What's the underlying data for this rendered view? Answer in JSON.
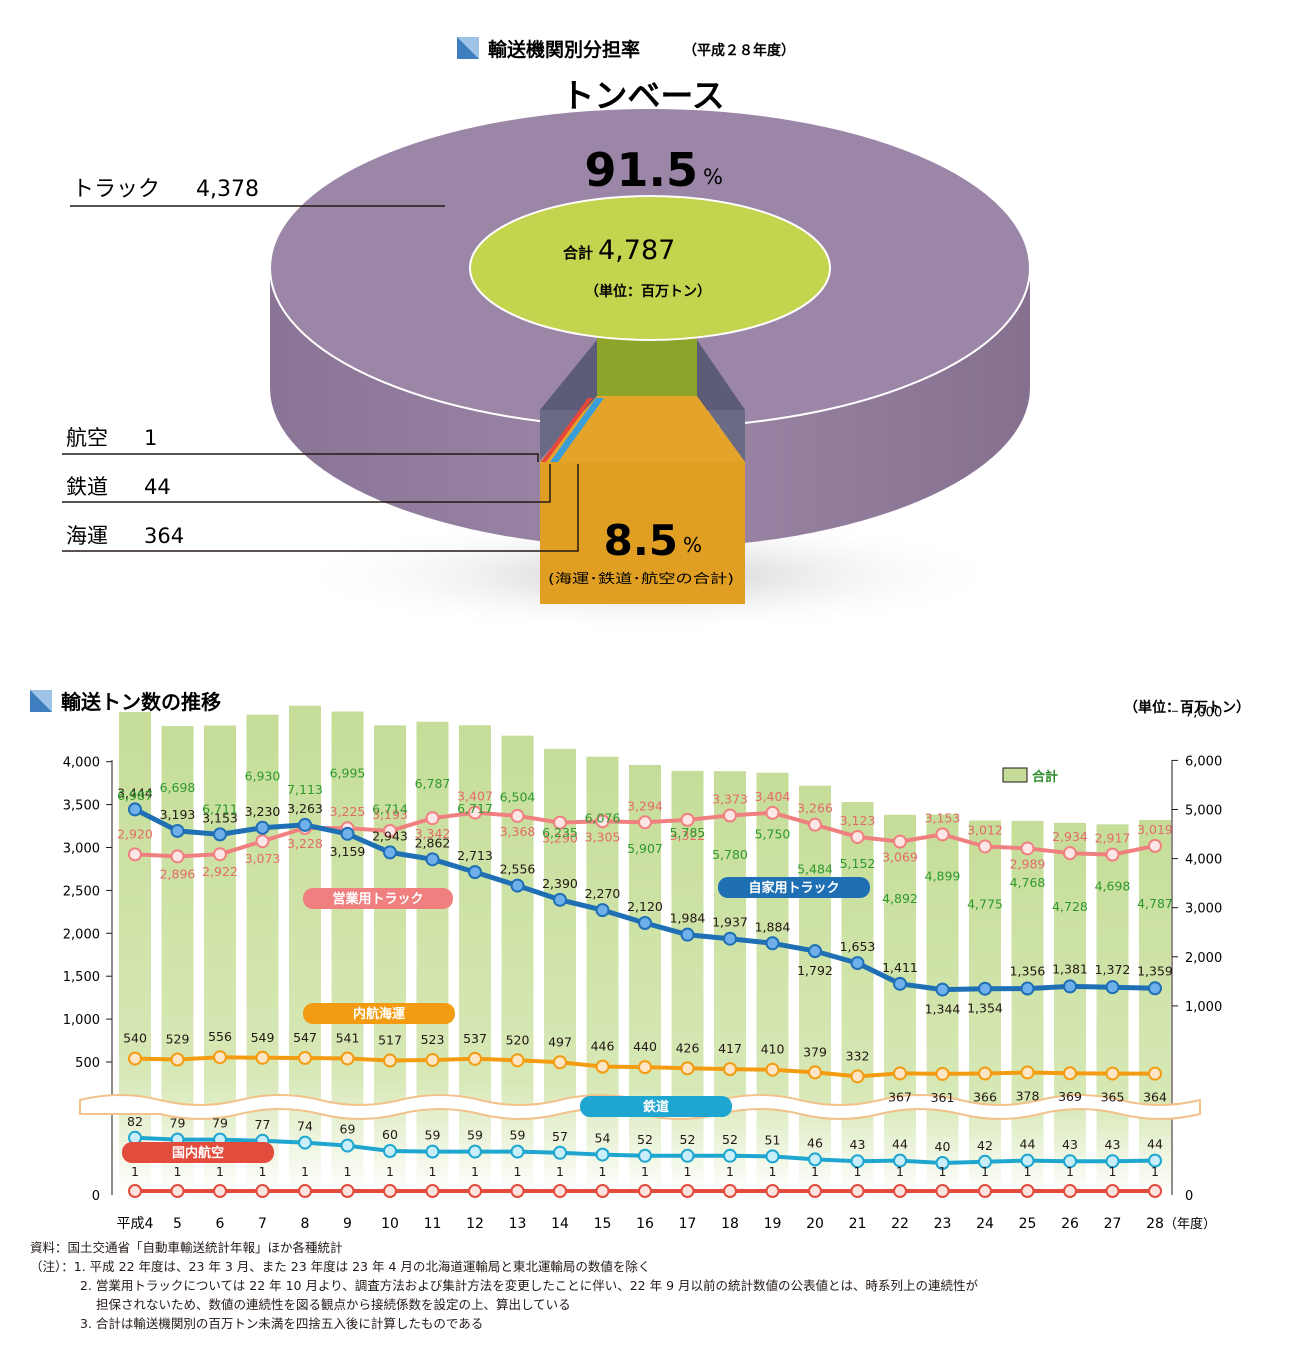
{
  "pie_section": {
    "title": "輸送機関別分担率",
    "title_sub": "（平成２８年度）",
    "subtitle": "トンベース",
    "truck_percent": "91.5",
    "percent_sign": "%",
    "center_total_label": "合計",
    "center_total_value": "4,787",
    "center_unit": "（単位：百万トン）",
    "other_percent": "8.5",
    "other_note": "(海運･鉄道･航空の合計)",
    "labels": [
      {
        "name": "トラック",
        "value": "4,378"
      },
      {
        "name": "航空",
        "value": "1"
      },
      {
        "name": "鉄道",
        "value": "44"
      },
      {
        "name": "海運",
        "value": "364"
      }
    ],
    "colors": {
      "truck": "#9b85a6",
      "center": "#c4d44e",
      "other": "#e0a022",
      "air": "#e8463a",
      "rail": "#3a9fd8"
    }
  },
  "line_section": {
    "title": "輸送トン数の推移",
    "unit": "（単位：百万トン）",
    "legend_total": "合計",
    "badge_commercial": "営業用トラック",
    "badge_private": "自家用トラック",
    "badge_coastal": "内航海運",
    "badge_rail": "鉄道",
    "badge_air": "国内航空",
    "year_unit": "（年度）",
    "left_zero": "0",
    "right_zero": "0"
  },
  "chart_data": {
    "type": "line",
    "title": "輸送トン数の推移",
    "x": [
      "平成4",
      "5",
      "6",
      "7",
      "8",
      "9",
      "10",
      "11",
      "12",
      "13",
      "14",
      "15",
      "16",
      "17",
      "18",
      "19",
      "20",
      "21",
      "22",
      "23",
      "24",
      "25",
      "26",
      "27",
      "28"
    ],
    "y_left_ticks": [
      "4,000",
      "3,500",
      "3,000",
      "2,500",
      "2,000",
      "1,500",
      "1,000",
      "500"
    ],
    "y_right_ticks": [
      "7,000",
      "6,000",
      "5,000",
      "4,000",
      "3,000",
      "2,000",
      "1,000"
    ],
    "ylim_left": [
      0,
      4000
    ],
    "ylim_right": [
      0,
      7000
    ],
    "series": [
      {
        "name": "合計",
        "kind": "bar",
        "axis": "right",
        "values": [
          6987,
          6698,
          6711,
          6930,
          7113,
          6995,
          6714,
          6787,
          6717,
          6504,
          6235,
          6076,
          5907,
          5785,
          5780,
          5750,
          5484,
          5152,
          4892,
          4899,
          4775,
          4768,
          4728,
          4698,
          4787
        ],
        "labels": [
          "6,987",
          "6,698",
          "6,711",
          "6,930",
          "7,113",
          "6,995",
          "6,714",
          "6,787",
          "6,717",
          "6,504",
          "6,235",
          "6,076",
          "5,907",
          "5,785",
          "5,780",
          "5,750",
          "5,484",
          "5,152",
          "4,892",
          "4,899",
          "4,775",
          "4,768",
          "4,728",
          "4,698",
          "4,787"
        ]
      },
      {
        "name": "営業用トラック",
        "kind": "line",
        "axis": "left",
        "values": [
          2920,
          2896,
          2922,
          3073,
          3228,
          3225,
          3193,
          3342,
          3407,
          3368,
          3290,
          3305,
          3294,
          3322,
          3373,
          3404,
          3266,
          3123,
          3069,
          3153,
          3012,
          2989,
          2934,
          2917,
          3019
        ],
        "labels": [
          "2,920",
          "2,896",
          "2,922",
          "3,073",
          "3,228",
          "3,225",
          "3,193",
          "3,342",
          "3,407",
          "3,368",
          "3,290",
          "3,305",
          "3,294",
          "3,322",
          "3,373",
          "3,404",
          "3,266",
          "3,123",
          "3,069",
          "3,153",
          "3,012",
          "2,989",
          "2,934",
          "2,917",
          "3,019"
        ]
      },
      {
        "name": "自家用トラック",
        "kind": "line",
        "axis": "left",
        "values": [
          3444,
          3193,
          3153,
          3230,
          3263,
          3159,
          2943,
          2862,
          2713,
          2556,
          2390,
          2270,
          2120,
          1984,
          1937,
          1884,
          1792,
          1653,
          1411,
          1344,
          1354,
          1356,
          1381,
          1372,
          1359
        ],
        "labels": [
          "3,444",
          "3,193",
          "3,153",
          "3,230",
          "3,263",
          "3,159",
          "2,943",
          "2,862",
          "2,713",
          "2,556",
          "2,390",
          "2,270",
          "2,120",
          "1,984",
          "1,937",
          "1,884",
          "1,792",
          "1,653",
          "1,411",
          "1,344",
          "1,354",
          "1,356",
          "1,381",
          "1,372",
          "1,359"
        ]
      },
      {
        "name": "内航海運",
        "kind": "line",
        "axis": "left",
        "values": [
          540,
          529,
          556,
          549,
          547,
          541,
          517,
          523,
          537,
          520,
          497,
          446,
          440,
          426,
          417,
          410,
          379,
          332,
          367,
          361,
          366,
          378,
          369,
          365,
          364
        ],
        "labels": [
          "540",
          "529",
          "556",
          "549",
          "547",
          "541",
          "517",
          "523",
          "537",
          "520",
          "497",
          "446",
          "440",
          "426",
          "417",
          "410",
          "379",
          "332",
          "367",
          "361",
          "366",
          "378",
          "369",
          "365",
          "364"
        ]
      },
      {
        "name": "鉄道",
        "kind": "line",
        "axis": "left-broken",
        "values": [
          82,
          79,
          79,
          77,
          74,
          69,
          60,
          59,
          59,
          59,
          57,
          54,
          52,
          52,
          52,
          51,
          46,
          43,
          44,
          40,
          42,
          44,
          43,
          43,
          44
        ],
        "labels": [
          "82",
          "79",
          "79",
          "77",
          "74",
          "69",
          "60",
          "59",
          "59",
          "59",
          "57",
          "54",
          "52",
          "52",
          "52",
          "51",
          "46",
          "43",
          "44",
          "40",
          "42",
          "44",
          "43",
          "43",
          "44"
        ]
      },
      {
        "name": "国内航空",
        "kind": "line",
        "axis": "left-broken",
        "values": [
          1,
          1,
          1,
          1,
          1,
          1,
          1,
          1,
          1,
          1,
          1,
          1,
          1,
          1,
          1,
          1,
          1,
          1,
          1,
          1,
          1,
          1,
          1,
          1,
          1
        ],
        "labels": [
          "1",
          "1",
          "1",
          "1",
          "1",
          "1",
          "1",
          "1",
          "1",
          "1",
          "1",
          "1",
          "1",
          "1",
          "1",
          "1",
          "1",
          "1",
          "1",
          "1",
          "1",
          "1",
          "1",
          "1",
          "1"
        ]
      }
    ]
  },
  "notes": {
    "source": "資料：国土交通省「自動車輸送統計年報」ほか各種統計",
    "note1": "（注）：1. 平成 22 年度は、23 年 3 月、また 23 年度は 23 年 4 月の北海道運輸局と東北運輸局の数値を除く",
    "note2a": "2. 営業用トラックについては 22 年 10 月より、調査方法および集計方法を変更したことに伴い、22 年 9 月以前の統計数値の公表値とは、時系列上の連続性が",
    "note2b": "担保されないため、数値の連続性を図る観点から接続係数を設定の上、算出している",
    "note3": "3. 合計は輸送機関別の百万トン未満を四捨五入後に計算したものである"
  }
}
